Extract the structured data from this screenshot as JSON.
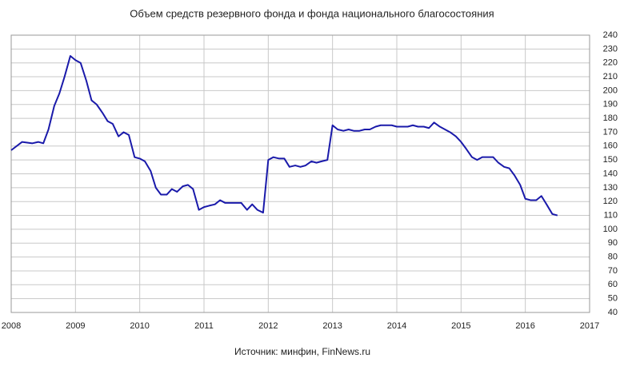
{
  "chart_data": {
    "type": "line",
    "title": "Объем средств резервного фонда и фонда национального благосостояния",
    "source": "Источник: минфин, FinNews.ru",
    "x": [
      2008.0,
      2008.17,
      2008.33,
      2008.42,
      2008.5,
      2008.58,
      2008.67,
      2008.75,
      2008.83,
      2008.92,
      2009.0,
      2009.08,
      2009.17,
      2009.25,
      2009.33,
      2009.42,
      2009.5,
      2009.58,
      2009.67,
      2009.75,
      2009.83,
      2009.92,
      2010.0,
      2010.08,
      2010.17,
      2010.25,
      2010.33,
      2010.42,
      2010.5,
      2010.58,
      2010.67,
      2010.75,
      2010.83,
      2010.92,
      2011.0,
      2011.08,
      2011.17,
      2011.25,
      2011.33,
      2011.42,
      2011.5,
      2011.58,
      2011.67,
      2011.75,
      2011.83,
      2011.92,
      2012.0,
      2012.08,
      2012.17,
      2012.25,
      2012.33,
      2012.42,
      2012.5,
      2012.58,
      2012.67,
      2012.75,
      2012.83,
      2012.92,
      2013.0,
      2013.08,
      2013.17,
      2013.25,
      2013.33,
      2013.42,
      2013.5,
      2013.58,
      2013.67,
      2013.75,
      2013.83,
      2013.92,
      2014.0,
      2014.08,
      2014.17,
      2014.25,
      2014.33,
      2014.42,
      2014.5,
      2014.58,
      2014.67,
      2014.75,
      2014.83,
      2014.92,
      2015.0,
      2015.08,
      2015.17,
      2015.25,
      2015.33,
      2015.42,
      2015.5,
      2015.58,
      2015.67,
      2015.75,
      2015.83,
      2015.92,
      2016.0,
      2016.08,
      2016.17,
      2016.25,
      2016.33,
      2016.42,
      2016.5
    ],
    "series": [
      {
        "color": "#1a1aaa",
        "values": [
          157,
          163,
          162,
          163,
          162,
          172,
          189,
          198,
          210,
          225,
          222,
          220,
          207,
          193,
          190,
          184,
          178,
          176,
          167,
          170,
          168,
          152,
          151,
          149,
          142,
          130,
          125,
          125,
          129,
          127,
          131,
          132,
          129,
          114,
          116,
          117,
          118,
          121,
          119,
          119,
          119,
          119,
          114,
          118,
          114,
          112,
          150,
          152,
          151,
          151,
          145,
          146,
          145,
          146,
          149,
          148,
          149,
          150,
          175,
          172,
          171,
          172,
          171,
          171,
          172,
          172,
          174,
          175,
          175,
          175,
          174,
          174,
          174,
          175,
          174,
          174,
          173,
          177,
          174,
          172,
          170,
          167,
          163,
          158,
          152,
          150,
          152,
          152,
          152,
          148,
          145,
          144,
          139,
          132,
          122,
          121,
          121,
          124,
          118,
          111,
          110
        ]
      }
    ],
    "xlim": [
      2008,
      2017
    ],
    "xticks": [
      2008,
      2009,
      2010,
      2011,
      2012,
      2013,
      2014,
      2015,
      2016,
      2017
    ],
    "ylim": [
      40,
      240
    ],
    "yticks": [
      40,
      50,
      60,
      70,
      80,
      90,
      100,
      110,
      120,
      130,
      140,
      150,
      160,
      170,
      180,
      190,
      200,
      210,
      220,
      230,
      240
    ],
    "grid": true
  }
}
